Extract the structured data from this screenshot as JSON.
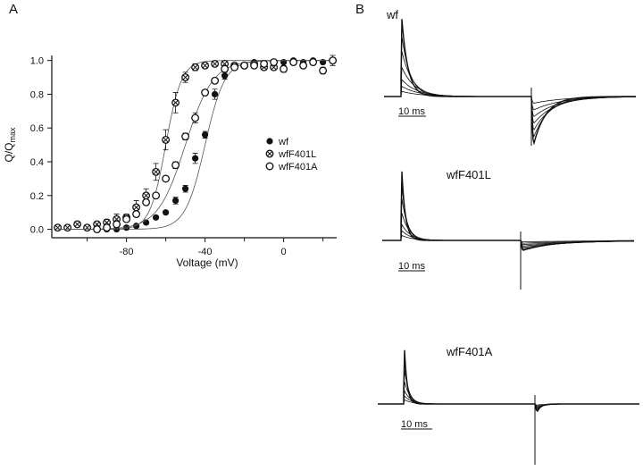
{
  "chart_data": [
    {
      "panel_label": "A",
      "type": "scatter",
      "xlabel": "Voltage (mV)",
      "ylabel_main": "Q/Q",
      "ylabel_sub": "max",
      "xlim": [
        -118,
        27
      ],
      "ylim": [
        -0.05,
        1.03
      ],
      "xticks": [
        -80,
        -40,
        0
      ],
      "xticks_minor": [
        -100,
        -60,
        -20,
        20
      ],
      "yticks": [
        "0.0",
        "0.2",
        "0.4",
        "0.6",
        "0.8",
        "1.0"
      ],
      "legend_position": "right-middle",
      "series": [
        {
          "name": "wf",
          "marker": "filled-circle",
          "x": [
            -90,
            -85,
            -80,
            -75,
            -70,
            -65,
            -60,
            -55,
            -50,
            -45,
            -40,
            -35,
            -30,
            -25,
            -20,
            -15,
            -10,
            -5,
            0,
            5,
            10,
            15,
            20,
            25
          ],
          "y": [
            0.0,
            0.0,
            0.01,
            0.02,
            0.04,
            0.07,
            0.1,
            0.17,
            0.24,
            0.42,
            0.56,
            0.8,
            0.91,
            0.97,
            0.97,
            0.99,
            0.98,
            0.99,
            0.99,
            1.0,
            0.99,
            1.0,
            0.99,
            1.0
          ],
          "err": [
            0.01,
            0.01,
            0.01,
            0.01,
            0.01,
            0.01,
            0.01,
            0.02,
            0.02,
            0.03,
            0.02,
            0.03,
            0.02,
            0.01,
            0.01,
            0.01,
            0.01,
            0.01,
            0.01,
            0.01,
            0.01,
            0.01,
            0.01,
            0.01
          ],
          "fit": {
            "v_half": -40,
            "slope": 5
          }
        },
        {
          "name": "wfF401L",
          "marker": "crossed-circle",
          "x": [
            -115,
            -110,
            -105,
            -100,
            -95,
            -90,
            -85,
            -80,
            -75,
            -70,
            -65,
            -60,
            -55,
            -50,
            -45,
            -40,
            -35,
            -30,
            -25,
            -20,
            -15,
            -10,
            -5
          ],
          "y": [
            0.01,
            0.01,
            0.03,
            0.01,
            0.03,
            0.04,
            0.06,
            0.07,
            0.13,
            0.2,
            0.34,
            0.53,
            0.75,
            0.9,
            0.96,
            0.97,
            0.98,
            0.98,
            0.97,
            0.97,
            0.98,
            0.96,
            0.96
          ],
          "err": [
            0.01,
            0.01,
            0.01,
            0.01,
            0.01,
            0.02,
            0.03,
            0.02,
            0.04,
            0.04,
            0.05,
            0.06,
            0.06,
            0.03,
            0.02,
            0.01,
            0.01,
            0.01,
            0.01,
            0.01,
            0.01,
            0.01,
            0.01
          ],
          "fit": {
            "v_half": -60,
            "slope": 4
          }
        },
        {
          "name": "wfF401A",
          "marker": "open-circle",
          "x": [
            -95,
            -90,
            -85,
            -80,
            -75,
            -70,
            -65,
            -60,
            -55,
            -50,
            -45,
            -40,
            -35,
            -30,
            -25,
            -20,
            -15,
            -10,
            -5,
            0,
            5,
            10,
            15,
            20,
            25
          ],
          "y": [
            0.0,
            0.01,
            0.03,
            0.06,
            0.09,
            0.16,
            0.2,
            0.3,
            0.38,
            0.55,
            0.66,
            0.81,
            0.88,
            0.95,
            0.96,
            0.97,
            0.97,
            0.98,
            0.99,
            0.95,
            0.99,
            0.97,
            0.99,
            0.94,
            1.0
          ],
          "err": [
            0.01,
            0.01,
            0.01,
            0.01,
            0.01,
            0.01,
            0.01,
            0.01,
            0.02,
            0.02,
            0.03,
            0.01,
            0.01,
            0.01,
            0.01,
            0.01,
            0.01,
            0.01,
            0.01,
            0.02,
            0.01,
            0.01,
            0.01,
            0.02,
            0.03
          ],
          "fit": {
            "v_half": -50,
            "slope": 7
          }
        }
      ]
    },
    {
      "panel_label": "B",
      "type": "line",
      "traces": [
        {
          "name": "wf",
          "scale_bar": "10 ms"
        },
        {
          "name": "wfF401L",
          "scale_bar": "10 ms"
        },
        {
          "name": "wfF401A",
          "scale_bar": "10 ms"
        }
      ]
    }
  ]
}
